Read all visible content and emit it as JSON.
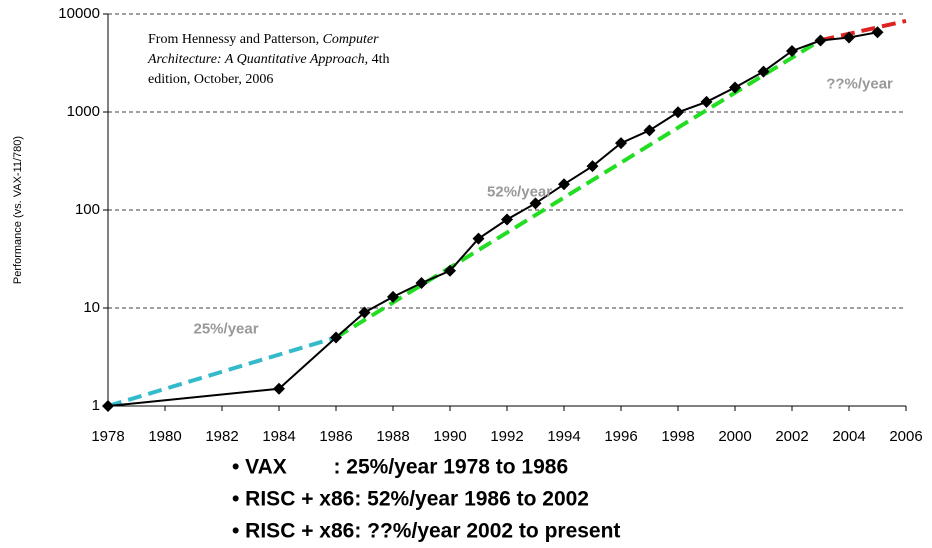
{
  "chart_data": {
    "type": "line",
    "y_label": "Performance (vs. VAX-11/780)",
    "log_y": true,
    "grid": true,
    "xlim": [
      1978,
      2006
    ],
    "xticks": [
      1978,
      1980,
      1982,
      1984,
      1986,
      1988,
      1990,
      1992,
      1994,
      1996,
      1998,
      2000,
      2002,
      2004,
      2006
    ],
    "ylim": [
      1,
      10000
    ],
    "yticks": [
      1,
      10,
      100,
      1000,
      10000
    ],
    "series": [
      {
        "color": "#33bbcc",
        "dashed": true,
        "markers": false,
        "x": [
          1978,
          1986
        ],
        "values": [
          1,
          5
        ]
      },
      {
        "color": "#22dd22",
        "dashed": true,
        "markers": false,
        "x": [
          1986,
          2003
        ],
        "values": [
          5,
          5400
        ]
      },
      {
        "color": "#dd2222",
        "dashed": true,
        "markers": false,
        "x": [
          2003,
          2006
        ],
        "values": [
          5400,
          8500
        ]
      },
      {
        "color": "#000000",
        "dashed": false,
        "markers": true,
        "x": [
          1978,
          1984,
          1986,
          1987,
          1988,
          1989,
          1990,
          1991,
          1992,
          1993,
          1994,
          1995,
          1996,
          1997,
          1998,
          1999,
          2000,
          2001,
          2002,
          2003,
          2004,
          2005
        ],
        "values": [
          1,
          1.5,
          5,
          9,
          13,
          18,
          24,
          51,
          80,
          117,
          183,
          280,
          481,
          649,
          993,
          1267,
          1779,
          2584,
          4195,
          5364,
          5764,
          6505
        ]
      }
    ],
    "annotations": [
      {
        "text": "25%/year",
        "x": 1981,
        "y": 6
      },
      {
        "text": "52%/year",
        "x": 1991.3,
        "y": 150
      },
      {
        "text": "??%/year",
        "x": 2003.2,
        "y": 1900
      }
    ],
    "source_lines": [
      [
        {
          "text": "From Hennessy and Patterson, ",
          "italic": false
        },
        {
          "text": "Computer",
          "italic": true
        }
      ],
      [
        {
          "text": "Architecture: A Quantitative Approach",
          "italic": true
        },
        {
          "text": ", 4th",
          "italic": false
        }
      ],
      [
        {
          "text": "edition, October, 2006",
          "italic": false
        }
      ]
    ]
  },
  "notes": [
    "• VAX        : 25%/year 1978 to 1986",
    "• RISC + x86: 52%/year 1986 to 2002",
    "• RISC + x86: ??%/year 2002 to present"
  ]
}
